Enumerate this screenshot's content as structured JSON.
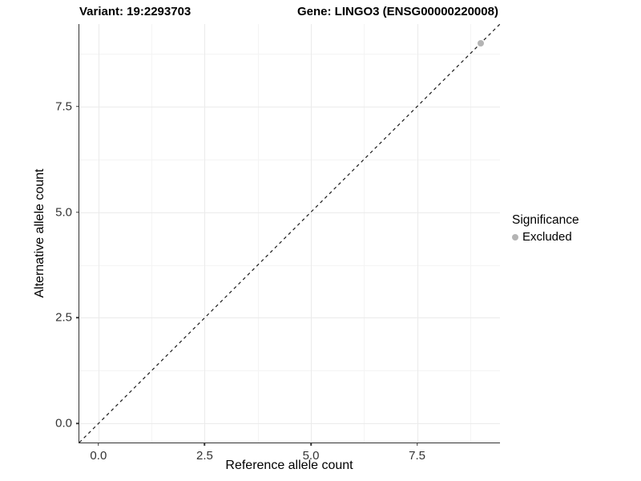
{
  "figure": {
    "background": "#ffffff"
  },
  "titles": {
    "left": "Variant: 19:2293703",
    "right": "Gene: LINGO3 (ENSG00000220008)"
  },
  "chart_data": {
    "type": "scatter",
    "title": "Variant: 19:2293703  |  Gene: LINGO3 (ENSG00000220008)",
    "xlabel": "Reference allele count",
    "ylabel": "Alternative allele count",
    "xlim": [
      -0.45,
      9.45
    ],
    "ylim": [
      -0.45,
      9.45
    ],
    "x_ticks": [
      0.0,
      2.5,
      5.0,
      7.5
    ],
    "y_ticks": [
      0.0,
      2.5,
      5.0,
      7.5
    ],
    "x_tick_labels": [
      "0.0",
      "2.5",
      "5.0",
      "7.5"
    ],
    "y_tick_labels": [
      "0.0",
      "2.5",
      "5.0",
      "7.5"
    ],
    "x_minor_ticks": [
      1.25,
      3.75,
      6.25,
      8.75
    ],
    "y_minor_ticks": [
      1.25,
      3.75,
      6.25,
      8.75
    ],
    "grid": true,
    "series": [
      {
        "name": "Excluded",
        "color": "#b4b4b4",
        "points": [
          {
            "x": 9.0,
            "y": 9.0
          }
        ]
      }
    ],
    "reference_line": {
      "type": "identity",
      "slope": 1,
      "intercept": 0,
      "style": "dashed",
      "color": "#1a1a1a"
    },
    "legend": {
      "title": "Significance",
      "position": "right",
      "items": [
        {
          "label": "Excluded",
          "color": "#b4b4b4",
          "marker": "circle"
        }
      ]
    }
  },
  "style": {
    "grid_major_color": "#ebebeb",
    "grid_minor_color": "#f4f4f4",
    "axis_line_color": "#333333",
    "tick_label_color": "#333333",
    "dash_pattern": "4 4"
  }
}
